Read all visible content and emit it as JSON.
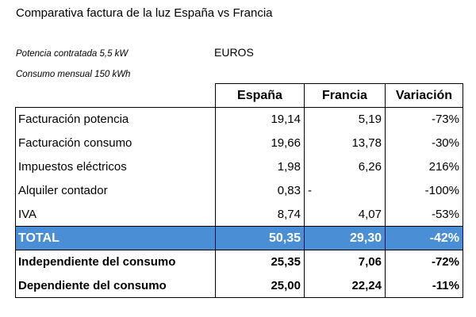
{
  "title": "Comparativa factura de la luz España vs Francia",
  "conditions": {
    "power": "Potencia contratada 5,5 kW",
    "consumption": "Consumo mensual 150 kWh"
  },
  "currency": "EUROS",
  "colors": {
    "total_row_bg": "#4a8fd6",
    "total_row_text": "#ffffff"
  },
  "table": {
    "headers": [
      "España",
      "Francia",
      "Variación"
    ],
    "rows": [
      {
        "concept": "Facturación potencia",
        "spain": "19,14",
        "france": "5,19",
        "variation": "-73%"
      },
      {
        "concept": "Facturación consumo",
        "spain": "19,66",
        "france": "13,78",
        "variation": "-30%"
      },
      {
        "concept": "Impuestos eléctricos",
        "spain": "1,98",
        "france": "6,26",
        "variation": "216%"
      },
      {
        "concept": "Alquiler contador",
        "spain": "0,83",
        "france": "-",
        "variation": "-100%"
      },
      {
        "concept": "IVA",
        "spain": "8,74",
        "france": "4,07",
        "variation": "-53%"
      }
    ],
    "total": {
      "concept": "TOTAL",
      "spain": "50,35",
      "france": "29,30",
      "variation": "-42%"
    },
    "summary": [
      {
        "concept": "Independiente del consumo",
        "spain": "25,35",
        "france": "7,06",
        "variation": "-72%"
      },
      {
        "concept": "Dependiente del consumo",
        "spain": "25,00",
        "france": "22,24",
        "variation": "-11%"
      }
    ]
  }
}
